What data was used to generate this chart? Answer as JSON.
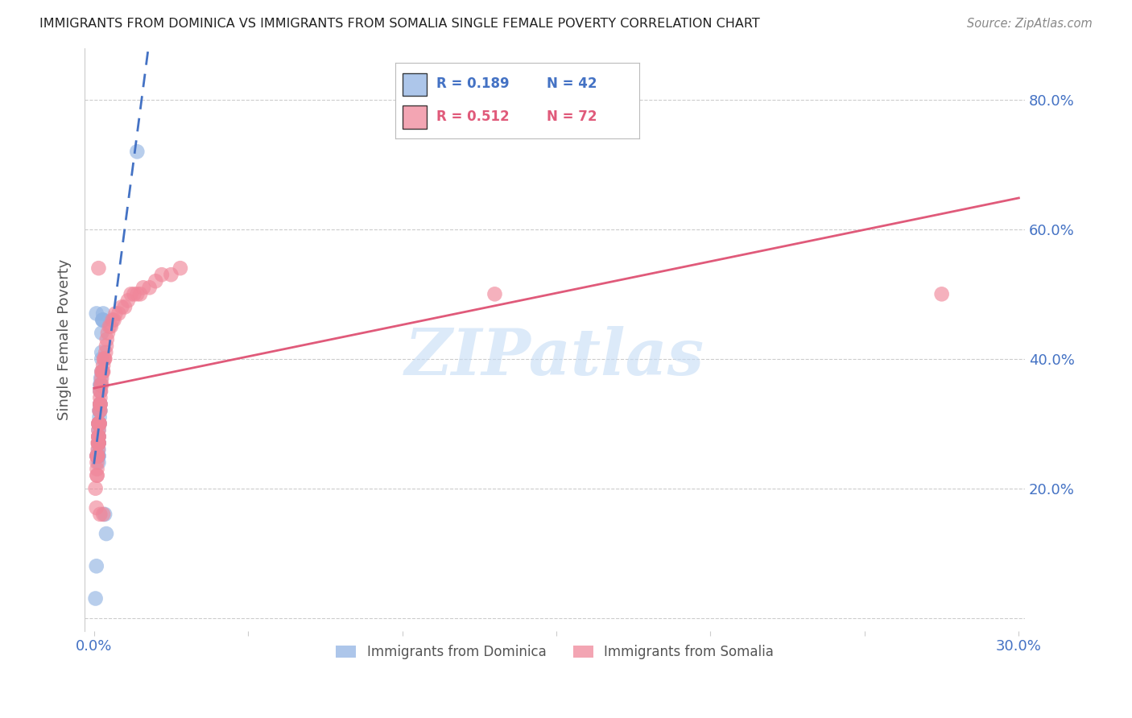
{
  "title": "IMMIGRANTS FROM DOMINICA VS IMMIGRANTS FROM SOMALIA SINGLE FEMALE POVERTY CORRELATION CHART",
  "source": "Source: ZipAtlas.com",
  "ylabel": "Single Female Poverty",
  "xlim": [
    0.0,
    0.3
  ],
  "ylim": [
    0.0,
    0.85
  ],
  "xtick_positions": [
    0.0,
    0.05,
    0.1,
    0.15,
    0.2,
    0.25,
    0.3
  ],
  "xtick_labels": [
    "0.0%",
    "",
    "",
    "",
    "",
    "",
    "30.0%"
  ],
  "ytick_positions": [
    0.0,
    0.2,
    0.4,
    0.6,
    0.8
  ],
  "ytick_labels": [
    "",
    "20.0%",
    "40.0%",
    "60.0%",
    "80.0%"
  ],
  "legend1_label": "Immigrants from Dominica",
  "legend2_label": "Immigrants from Somalia",
  "R1": 0.189,
  "N1": 42,
  "R2": 0.512,
  "N2": 72,
  "color_dominica": "#92b4e3",
  "color_somalia": "#f0879a",
  "color_blue": "#4472c4",
  "color_pink": "#e05a7a",
  "watermark": "ZIPatlas",
  "dominica_x": [
    0.0005,
    0.0008,
    0.001,
    0.001,
    0.0012,
    0.0013,
    0.0015,
    0.0015,
    0.0015,
    0.0015,
    0.0015,
    0.0015,
    0.0015,
    0.0015,
    0.0015,
    0.0015,
    0.0015,
    0.0016,
    0.0017,
    0.0018,
    0.0018,
    0.0018,
    0.0019,
    0.002,
    0.002,
    0.002,
    0.002,
    0.002,
    0.0022,
    0.0022,
    0.0025,
    0.0025,
    0.0025,
    0.0025,
    0.0028,
    0.0028,
    0.003,
    0.003,
    0.0035,
    0.004,
    0.014,
    0.0008
  ],
  "dominica_y": [
    0.03,
    0.08,
    0.25,
    0.25,
    0.25,
    0.25,
    0.24,
    0.25,
    0.25,
    0.26,
    0.27,
    0.27,
    0.27,
    0.28,
    0.28,
    0.29,
    0.3,
    0.3,
    0.3,
    0.3,
    0.31,
    0.32,
    0.32,
    0.32,
    0.33,
    0.33,
    0.35,
    0.36,
    0.36,
    0.37,
    0.38,
    0.4,
    0.41,
    0.44,
    0.46,
    0.46,
    0.46,
    0.47,
    0.16,
    0.13,
    0.72,
    0.47
  ],
  "somalia_x": [
    0.0005,
    0.0008,
    0.001,
    0.001,
    0.001,
    0.001,
    0.001,
    0.001,
    0.001,
    0.0012,
    0.0012,
    0.0013,
    0.0013,
    0.0015,
    0.0015,
    0.0015,
    0.0015,
    0.0015,
    0.0015,
    0.0015,
    0.0015,
    0.0015,
    0.0015,
    0.0018,
    0.0018,
    0.0018,
    0.002,
    0.002,
    0.002,
    0.002,
    0.002,
    0.002,
    0.0022,
    0.0022,
    0.0025,
    0.0025,
    0.0025,
    0.0028,
    0.0028,
    0.003,
    0.003,
    0.0032,
    0.0035,
    0.0035,
    0.0038,
    0.004,
    0.0042,
    0.0045,
    0.005,
    0.0055,
    0.006,
    0.0065,
    0.007,
    0.008,
    0.009,
    0.01,
    0.011,
    0.012,
    0.013,
    0.014,
    0.015,
    0.016,
    0.018,
    0.02,
    0.022,
    0.025,
    0.028,
    0.003,
    0.002,
    0.0015,
    0.275,
    0.13
  ],
  "somalia_y": [
    0.2,
    0.17,
    0.22,
    0.22,
    0.23,
    0.24,
    0.25,
    0.25,
    0.25,
    0.25,
    0.25,
    0.26,
    0.27,
    0.27,
    0.27,
    0.27,
    0.28,
    0.28,
    0.28,
    0.29,
    0.3,
    0.3,
    0.3,
    0.3,
    0.3,
    0.32,
    0.32,
    0.33,
    0.33,
    0.33,
    0.34,
    0.35,
    0.35,
    0.36,
    0.36,
    0.37,
    0.38,
    0.38,
    0.38,
    0.38,
    0.39,
    0.4,
    0.4,
    0.4,
    0.41,
    0.42,
    0.43,
    0.44,
    0.45,
    0.45,
    0.46,
    0.46,
    0.47,
    0.47,
    0.48,
    0.48,
    0.49,
    0.5,
    0.5,
    0.5,
    0.5,
    0.51,
    0.51,
    0.52,
    0.53,
    0.53,
    0.54,
    0.16,
    0.16,
    0.54,
    0.5,
    0.5
  ]
}
